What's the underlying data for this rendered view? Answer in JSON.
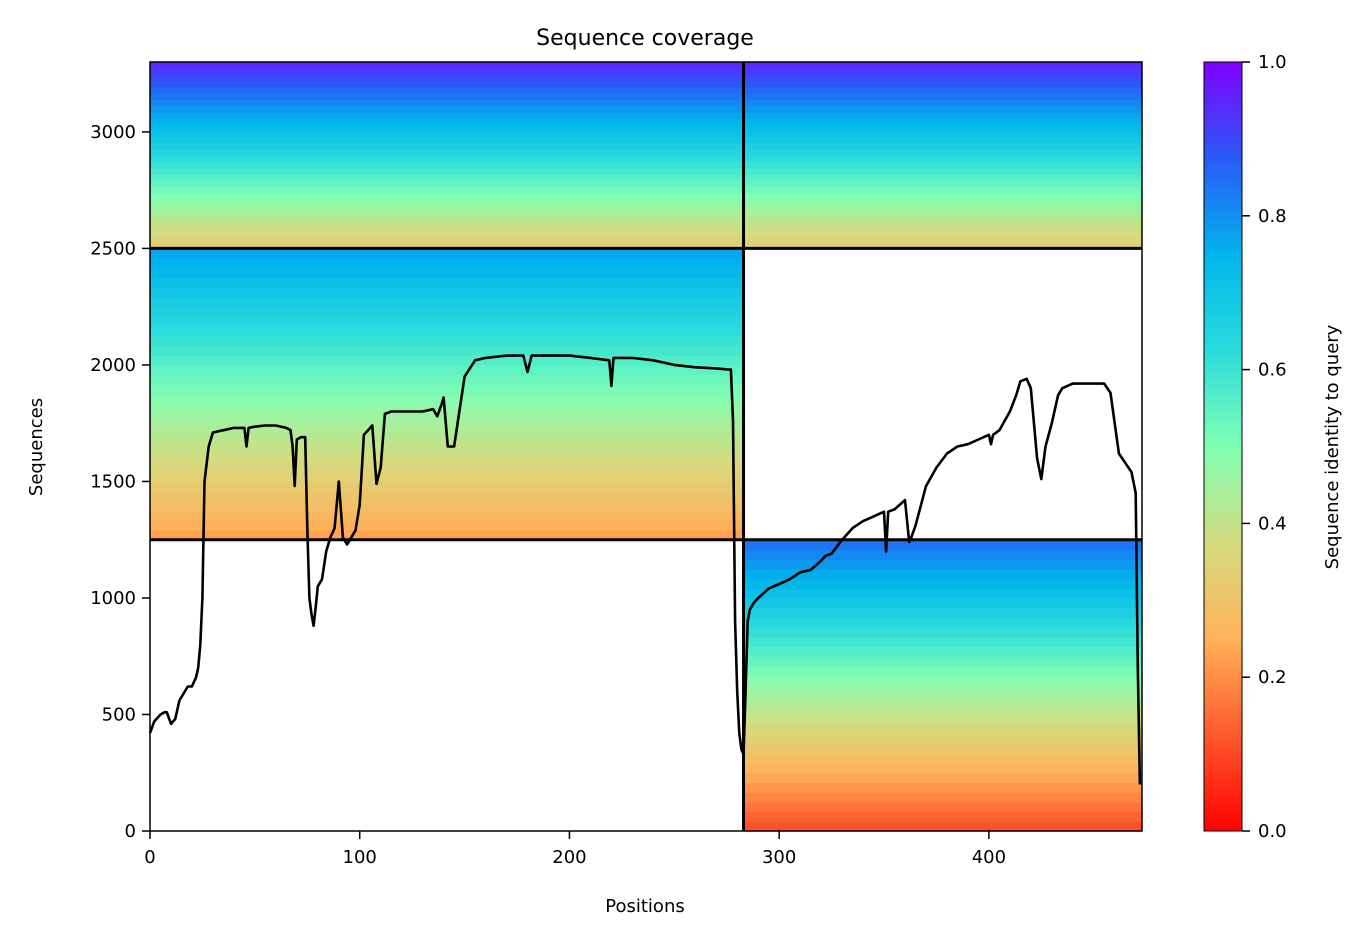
{
  "chart_data": {
    "type": "heatmap",
    "title": "Sequence coverage",
    "xlabel": "Positions",
    "ylabel": "Sequences",
    "xlim": [
      0,
      473
    ],
    "ylim": [
      0,
      3300
    ],
    "x_ticks": [
      0,
      100,
      200,
      300,
      400
    ],
    "y_ticks": [
      0,
      500,
      1000,
      1500,
      2000,
      2500,
      3000
    ],
    "colorbar": {
      "label": "Sequence identity to query",
      "range": [
        0.0,
        1.0
      ],
      "ticks": [
        "0.0",
        "0.2",
        "0.4",
        "0.6",
        "0.8",
        "1.0"
      ],
      "colormap": "rainbow_r"
    },
    "chain_boundaries": {
      "positions": [
        283
      ],
      "sequence_blocks": [
        1250,
        2500
      ]
    },
    "msa_blocks": [
      {
        "positions": [
          0,
          283
        ],
        "sequences": [
          1250,
          2500
        ],
        "identity_bottom": 0.22,
        "identity_top": 0.78
      },
      {
        "positions": [
          0,
          283
        ],
        "sequences": [
          2500,
          3300
        ],
        "identity_bottom": 0.32,
        "identity_top": 0.95
      },
      {
        "positions": [
          283,
          473
        ],
        "sequences": [
          2500,
          3300
        ],
        "identity_bottom": 0.32,
        "identity_top": 0.95
      },
      {
        "positions": [
          283,
          473
        ],
        "sequences": [
          0,
          1250
        ],
        "identity_bottom": 0.1,
        "identity_top": 0.85
      }
    ],
    "coverage_line": {
      "x": [
        0,
        2,
        5,
        7,
        8,
        10,
        12,
        14,
        16,
        18,
        20,
        22,
        23,
        24,
        25,
        26,
        28,
        30,
        35,
        40,
        45,
        46,
        47,
        50,
        55,
        60,
        65,
        67,
        68,
        69,
        70,
        72,
        74,
        75,
        76,
        77,
        78,
        79,
        80,
        82,
        84,
        86,
        88,
        90,
        92,
        94,
        96,
        98,
        100,
        102,
        104,
        106,
        108,
        110,
        112,
        115,
        120,
        125,
        130,
        135,
        137,
        139,
        140,
        142,
        145,
        150,
        155,
        160,
        170,
        178,
        180,
        182,
        190,
        200,
        210,
        219,
        220,
        221,
        230,
        240,
        250,
        260,
        270,
        276,
        277,
        278,
        279,
        280,
        281,
        282,
        283,
        284,
        285,
        286,
        288,
        290,
        295,
        300,
        305,
        310,
        315,
        320,
        322,
        325,
        330,
        335,
        340,
        345,
        350,
        351,
        352,
        355,
        360,
        362,
        363,
        365,
        370,
        375,
        380,
        385,
        390,
        395,
        400,
        401,
        402,
        405,
        410,
        413,
        415,
        418,
        420,
        423,
        425,
        427,
        430,
        433,
        435,
        440,
        445,
        450,
        455,
        458,
        460,
        462,
        465,
        468,
        470,
        471,
        472
      ],
      "y": [
        420,
        470,
        500,
        510,
        510,
        460,
        480,
        560,
        590,
        620,
        620,
        660,
        700,
        800,
        1000,
        1500,
        1650,
        1710,
        1720,
        1730,
        1730,
        1650,
        1730,
        1735,
        1740,
        1740,
        1730,
        1720,
        1650,
        1480,
        1680,
        1690,
        1690,
        1300,
        1000,
        930,
        880,
        960,
        1050,
        1080,
        1200,
        1260,
        1300,
        1500,
        1260,
        1230,
        1260,
        1290,
        1400,
        1700,
        1720,
        1740,
        1490,
        1560,
        1790,
        1800,
        1800,
        1800,
        1800,
        1810,
        1780,
        1830,
        1860,
        1650,
        1650,
        1950,
        2020,
        2030,
        2040,
        2040,
        1970,
        2040,
        2040,
        2040,
        2030,
        2020,
        1910,
        2030,
        2030,
        2020,
        2000,
        1990,
        1985,
        1980,
        1980,
        1760,
        900,
        600,
        420,
        350,
        330,
        600,
        900,
        950,
        980,
        1000,
        1040,
        1060,
        1080,
        1110,
        1120,
        1160,
        1180,
        1190,
        1250,
        1300,
        1330,
        1350,
        1370,
        1200,
        1370,
        1380,
        1420,
        1240,
        1260,
        1310,
        1480,
        1560,
        1620,
        1650,
        1660,
        1680,
        1700,
        1660,
        1700,
        1720,
        1800,
        1870,
        1930,
        1940,
        1900,
        1600,
        1510,
        1650,
        1750,
        1870,
        1900,
        1920,
        1920,
        1920,
        1920,
        1880,
        1750,
        1620,
        1580,
        1540,
        1450,
        700,
        200
      ]
    }
  }
}
